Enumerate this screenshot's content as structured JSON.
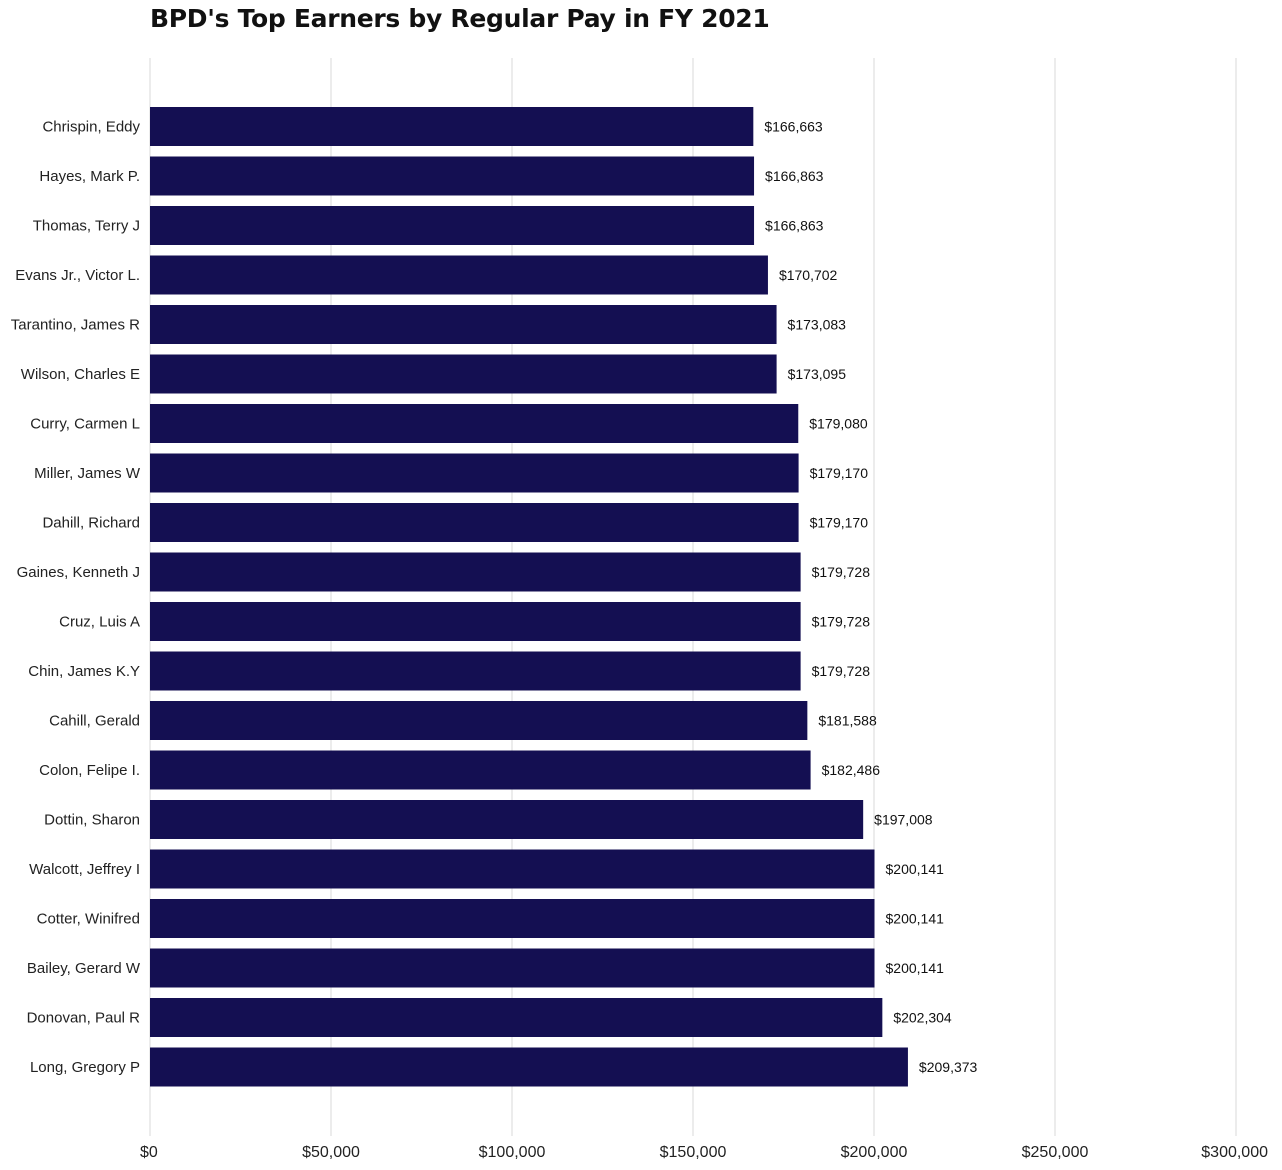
{
  "chart_data": {
    "type": "bar",
    "orientation": "horizontal",
    "title": "BPD's Top Earners by Regular Pay in FY 2021",
    "xlabel": "",
    "ylabel": "",
    "xlim": [
      0,
      300000
    ],
    "x_ticks": [
      0,
      50000,
      100000,
      150000,
      200000,
      250000,
      300000
    ],
    "x_tick_labels": [
      "$0",
      "$50,000",
      "$100,000",
      "$150,000",
      "$200,000",
      "$250,000",
      "$300,000"
    ],
    "grid": "vertical",
    "bar_color": "#140f52",
    "categories": [
      "Chrispin, Eddy",
      "Hayes, Mark P.",
      "Thomas, Terry J",
      "Evans Jr., Victor L.",
      "Tarantino, James R",
      "Wilson, Charles E",
      "Curry, Carmen L",
      "Miller, James W",
      "Dahill, Richard",
      "Gaines, Kenneth J",
      "Cruz, Luis A",
      "Chin, James K.Y",
      "Cahill, Gerald",
      "Colon, Felipe I.",
      "Dottin, Sharon",
      "Walcott, Jeffrey I",
      "Cotter, Winifred",
      "Bailey, Gerard W",
      "Donovan, Paul R",
      "Long, Gregory P"
    ],
    "values": [
      166663,
      166863,
      166863,
      170702,
      173083,
      173095,
      179080,
      179170,
      179170,
      179728,
      179728,
      179728,
      181588,
      182486,
      197008,
      200141,
      200141,
      200141,
      202304,
      209373
    ],
    "value_labels": [
      "$166,663",
      "$166,863",
      "$166,863",
      "$170,702",
      "$173,083",
      "$173,095",
      "$179,080",
      "$179,170",
      "$179,170",
      "$179,728",
      "$179,728",
      "$179,728",
      "$181,588",
      "$182,486",
      "$197,008",
      "$200,141",
      "$200,141",
      "$200,141",
      "$202,304",
      "$209,373"
    ]
  }
}
